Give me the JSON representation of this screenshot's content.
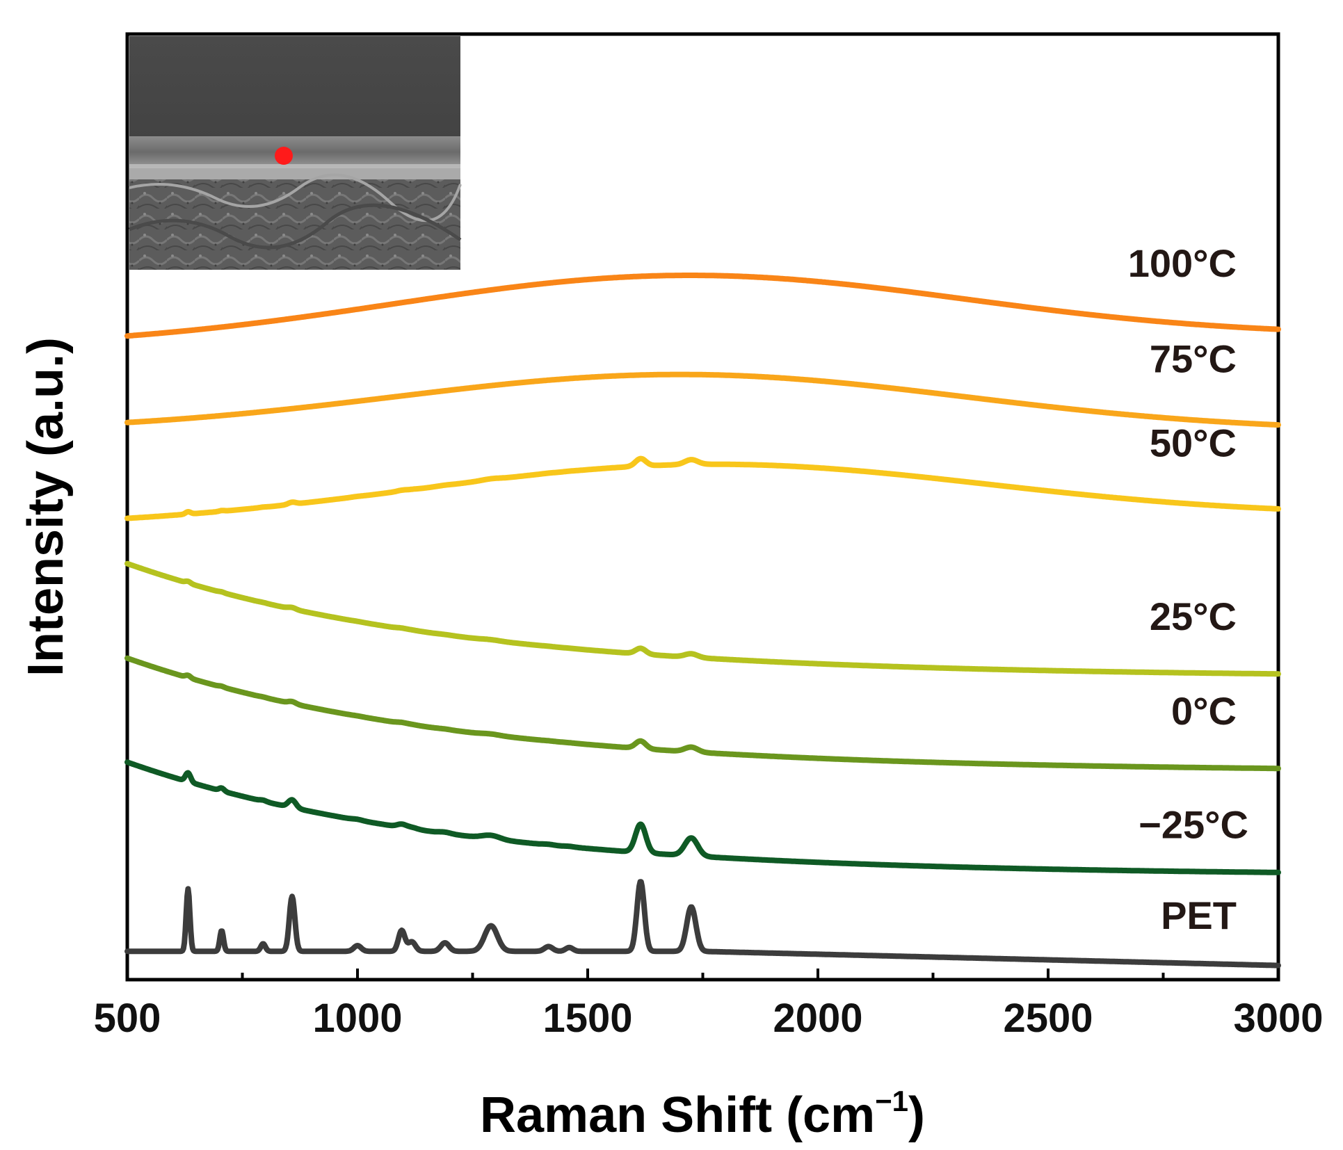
{
  "chart_data": {
    "type": "line",
    "title": "",
    "xlabel": "Raman Shift (cm",
    "xlabel_superscript": "−1",
    "xlabel_close": ")",
    "ylabel": "Intensity (a.u.)",
    "xlim": [
      500,
      3000
    ],
    "xticks": [
      "500",
      "1000",
      "1500",
      "2000",
      "2500",
      "3000"
    ],
    "yticks_shown": false,
    "inset": "SEM cross-section micrograph with red marker indicating measurement spot",
    "peaks_cm1": [
      632,
      705,
      795,
      858,
      1000,
      1096,
      1118,
      1190,
      1290,
      1415,
      1460,
      1615,
      1725
    ],
    "series": [
      {
        "name": "100°C",
        "color": "#F98517",
        "profile": "hump",
        "baseline_start": 0.67,
        "baseline_end": 0.68,
        "hump_height": 0.07,
        "hump_center": 1700,
        "peak_scale": 0.0
      },
      {
        "name": "75°C",
        "color": "#F9A61A",
        "profile": "hump",
        "baseline_start": 0.58,
        "baseline_end": 0.58,
        "hump_height": 0.06,
        "hump_center": 1700,
        "peak_scale": 0.0
      },
      {
        "name": "50°C",
        "color": "#F8C61B",
        "profile": "hump",
        "baseline_start": 0.48,
        "baseline_end": 0.49,
        "hump_height": 0.06,
        "hump_center": 1750,
        "peak_scale": 0.008
      },
      {
        "name": "25°C",
        "color": "#B5C21F",
        "profile": "decay",
        "baseline_start": 0.44,
        "baseline_end": 0.32,
        "peak_scale": 0.006
      },
      {
        "name": "0°C",
        "color": "#6A961E",
        "profile": "decay",
        "baseline_start": 0.34,
        "baseline_end": 0.22,
        "peak_scale": 0.008
      },
      {
        "name": "−25°C",
        "color": "#0F5A25",
        "profile": "decay",
        "baseline_start": 0.23,
        "baseline_end": 0.11,
        "peak_scale": 0.03
      },
      {
        "name": "PET",
        "color": "#3C3C3C",
        "profile": "flat",
        "baseline_start": 0.03,
        "baseline_end": 0.015,
        "peak_scale": 1.0
      }
    ]
  }
}
